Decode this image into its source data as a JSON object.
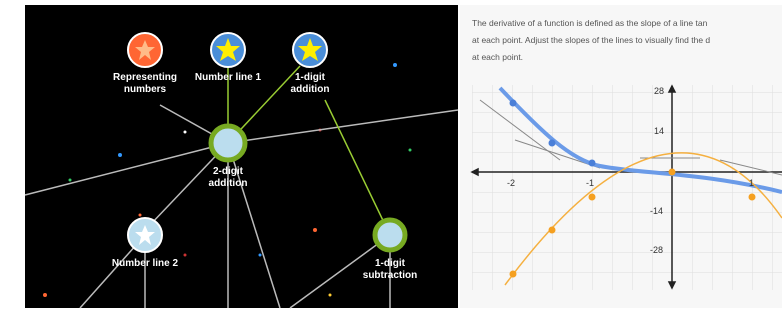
{
  "knowledge_map": {
    "nodes": [
      {
        "label": "Representing numbers"
      },
      {
        "label": "Number line 1"
      },
      {
        "label": "1-digit addition"
      },
      {
        "label": "2-digit addition"
      },
      {
        "label": "Number line 2"
      },
      {
        "label": "1-digit subtraction"
      }
    ]
  },
  "exercise": {
    "instructions": [
      "The derivative of a function is defined as the slope of a line tan",
      "at each point. Adjust the slopes of the lines to visually find the d",
      "at each point."
    ],
    "graph": {
      "x_ticks": [
        "-2",
        "-1",
        "1"
      ],
      "y_ticks": [
        "28",
        "14",
        "-14",
        "-28"
      ]
    }
  }
}
